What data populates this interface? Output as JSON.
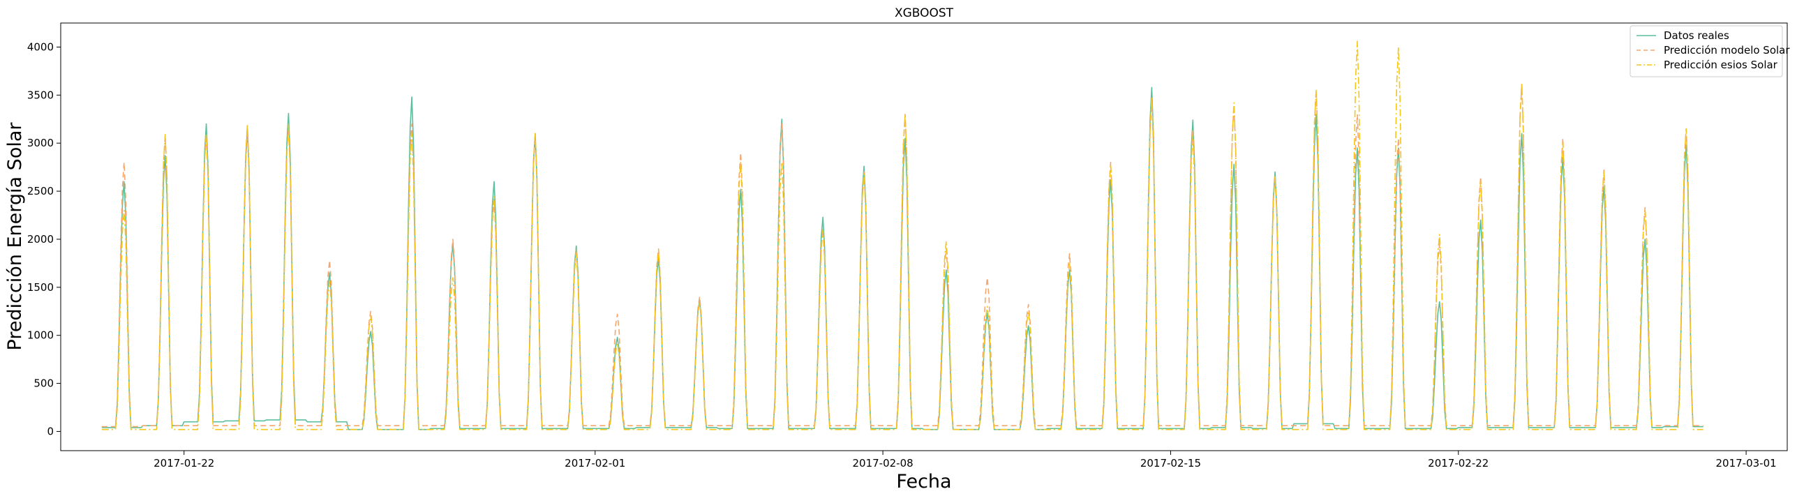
{
  "chart_data": {
    "type": "line",
    "title": "XGBOOST",
    "xlabel": "Fecha",
    "ylabel": "Predicción Energía Solar",
    "x_type": "date",
    "xlim": [
      "2017-01-19T00:00",
      "2017-03-02T00:00"
    ],
    "ylim": [
      -200,
      4250
    ],
    "x_ticks": [
      "2017-01-22",
      "2017-02-01",
      "2017-02-08",
      "2017-02-15",
      "2017-02-22",
      "2017-03-01"
    ],
    "y_ticks": [
      0,
      500,
      1000,
      1500,
      2000,
      2500,
      3000,
      3500,
      4000
    ],
    "grid": false,
    "legend_position": "top-right",
    "x_start": "2017-01-20T00:00",
    "x_step_hours": 24,
    "day_peak_hour": 13,
    "series": [
      {
        "name": "Datos reales",
        "color": "#5abf9a",
        "style": "solid",
        "daily_peak": [
          2600,
          2870,
          3200,
          3150,
          3310,
          1650,
          1040,
          3480,
          1950,
          2600,
          3100,
          1930,
          980,
          1800,
          1370,
          2520,
          3250,
          2230,
          2760,
          3050,
          1680,
          1230,
          1100,
          1680,
          2620,
          3580,
          3240,
          2780,
          2700,
          3300,
          2950,
          2950,
          1350,
          2200,
          3100,
          2850,
          2550,
          2000,
          2980
        ],
        "daily_base": [
          40,
          60,
          100,
          110,
          120,
          100,
          20,
          20,
          30,
          30,
          30,
          30,
          30,
          40,
          40,
          30,
          30,
          30,
          30,
          30,
          20,
          20,
          20,
          30,
          30,
          30,
          30,
          40,
          30,
          80,
          30,
          30,
          30,
          40,
          40,
          40,
          40,
          40,
          50
        ]
      },
      {
        "name": "Predicción modelo Solar",
        "color": "#f7a66b",
        "style": "dashed",
        "daily_peak": [
          2800,
          3080,
          3100,
          3100,
          3200,
          1780,
          1250,
          3200,
          2000,
          2400,
          3050,
          1900,
          1220,
          1900,
          1400,
          2900,
          3200,
          2100,
          2700,
          3300,
          1900,
          1600,
          1320,
          1850,
          2800,
          3450,
          3150,
          3400,
          2650,
          3550,
          3300,
          3050,
          1950,
          2650,
          3600,
          3050,
          2720,
          2330,
          3150
        ],
        "daily_base": [
          50,
          60,
          60,
          60,
          60,
          60,
          60,
          60,
          60,
          60,
          60,
          60,
          60,
          60,
          60,
          60,
          60,
          60,
          60,
          60,
          60,
          60,
          60,
          60,
          60,
          60,
          60,
          60,
          60,
          60,
          60,
          60,
          60,
          60,
          60,
          60,
          60,
          60,
          60
        ]
      },
      {
        "name": "Predicción esios Solar",
        "color": "#f5c518",
        "style": "dashdot",
        "daily_peak": [
          2300,
          3090,
          3100,
          3200,
          3180,
          1560,
          1200,
          3100,
          1600,
          2450,
          3100,
          1850,
          920,
          1880,
          1350,
          2800,
          2800,
          2100,
          2680,
          3300,
          1980,
          1300,
          1250,
          1750,
          2780,
          3480,
          3080,
          3420,
          2650,
          3550,
          4060,
          4000,
          2050,
          2600,
          3630,
          3000,
          2700,
          2300,
          3150
        ],
        "daily_base": [
          20,
          20,
          20,
          20,
          20,
          20,
          20,
          20,
          20,
          20,
          20,
          20,
          20,
          20,
          20,
          20,
          20,
          20,
          20,
          20,
          20,
          20,
          20,
          20,
          20,
          20,
          20,
          20,
          20,
          20,
          20,
          20,
          20,
          20,
          20,
          20,
          20,
          20,
          20
        ]
      }
    ]
  }
}
